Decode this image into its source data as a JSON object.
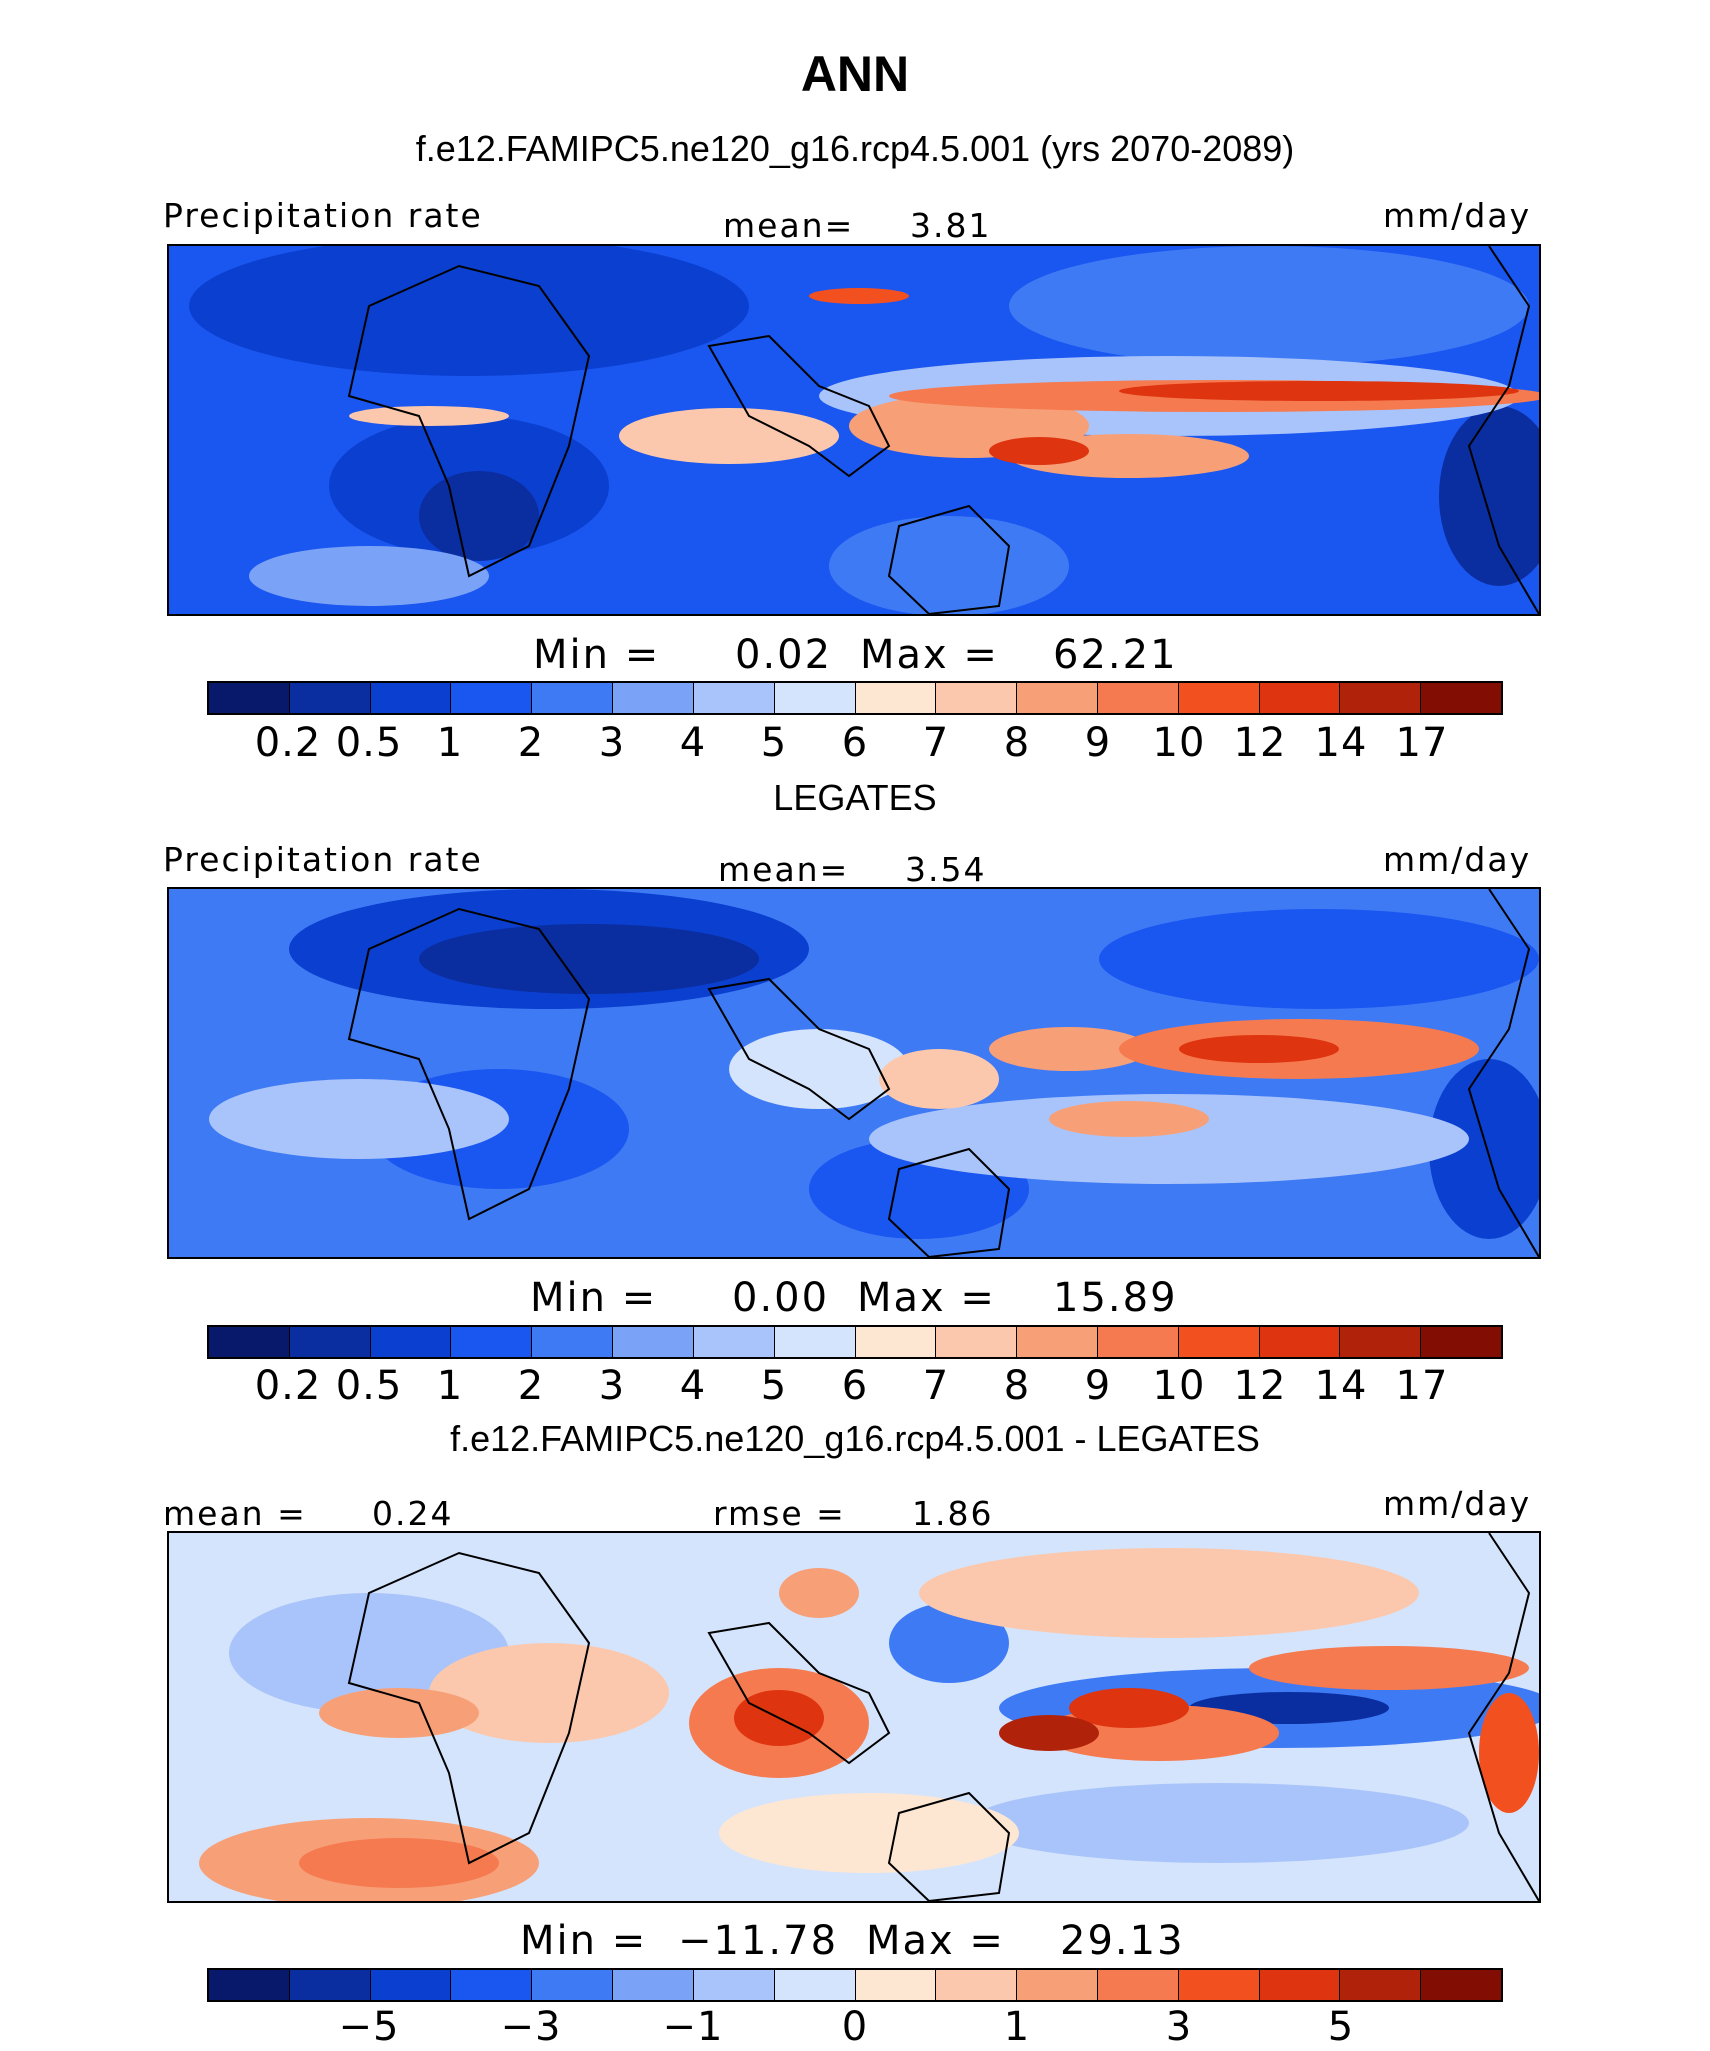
{
  "figure": {
    "title": "ANN",
    "colors": [
      "#08196b",
      "#0a2ea0",
      "#0b3fd0",
      "#1a56f0",
      "#3f7af5",
      "#7aa2f7",
      "#a9c4fa",
      "#d4e4fc",
      "#fde7d3",
      "#fbc8ad",
      "#f7a078",
      "#f57a4f",
      "#f2511f",
      "#de3410",
      "#b1220b",
      "#820e03"
    ]
  },
  "chart_data": [
    {
      "type": "heatmap",
      "case_title": "f.e12.FAMIPC5.ne120_g16.rcp4.5.001 (yrs 2070-2089)",
      "left_label": "Precipitation rate",
      "center_label": "mean=",
      "center_value": "3.81",
      "units": "mm/day",
      "min_text": "Min  =",
      "min_value": "0.02",
      "max_text": "Max  =",
      "max_value": "62.21",
      "colorbar_ticks": [
        "0.2",
        "0.5",
        "1",
        "2",
        "3",
        "4",
        "5",
        "6",
        "7",
        "8",
        "9",
        "10",
        "12",
        "14",
        "17"
      ],
      "colorbar_levels": [
        0.2,
        0.5,
        1,
        2,
        3,
        4,
        5,
        6,
        7,
        8,
        9,
        10,
        12,
        14,
        17
      ]
    },
    {
      "type": "heatmap",
      "case_title": "LEGATES",
      "left_label": "Precipitation rate",
      "center_label": "mean=",
      "center_value": "3.54",
      "units": "mm/day",
      "min_text": "Min  =",
      "min_value": "0.00",
      "max_text": "Max  =",
      "max_value": "15.89",
      "colorbar_ticks": [
        "0.2",
        "0.5",
        "1",
        "2",
        "3",
        "4",
        "5",
        "6",
        "7",
        "8",
        "9",
        "10",
        "12",
        "14",
        "17"
      ],
      "colorbar_levels": [
        0.2,
        0.5,
        1,
        2,
        3,
        4,
        5,
        6,
        7,
        8,
        9,
        10,
        12,
        14,
        17
      ]
    },
    {
      "type": "heatmap",
      "case_title": "f.e12.FAMIPC5.ne120_g16.rcp4.5.001 - LEGATES",
      "left_label": "mean  =",
      "left_value": "0.24",
      "center_label": "rmse  =",
      "center_value": "1.86",
      "units": "mm/day",
      "min_text": "Min  =",
      "min_value": "−11.78",
      "max_text": "Max  =",
      "max_value": "29.13",
      "colorbar_ticks": [
        "−5",
        "−3",
        "−1",
        "0",
        "1",
        "3",
        "5"
      ],
      "colorbar_levels": [
        -5,
        -3,
        -1,
        0,
        1,
        3,
        5
      ]
    }
  ]
}
